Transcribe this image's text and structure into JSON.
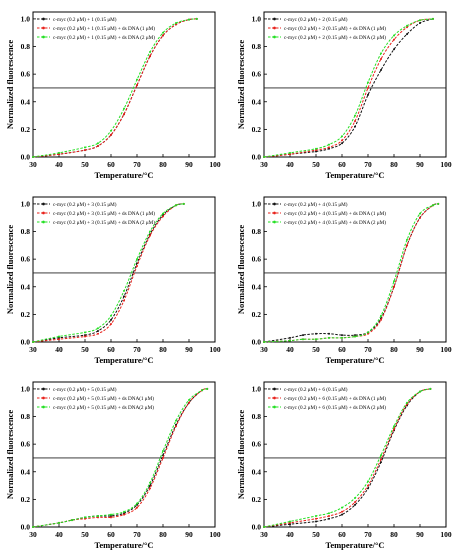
{
  "colors": {
    "series": [
      "#111111",
      "#e8201a",
      "#22e022"
    ],
    "threshold": "#222222"
  },
  "chart_data": [
    {
      "type": "line",
      "xlabel": "Temperature/°C",
      "ylabel": "Normalized fluorescence",
      "xlim": [
        30,
        100
      ],
      "ylim": [
        0,
        1.05
      ],
      "xticks": [
        "30",
        "40",
        "50",
        "60",
        "70",
        "80",
        "90",
        "100"
      ],
      "yticks": [
        "0.0",
        "0.2",
        "0.4",
        "0.6",
        "0.8",
        "1.0"
      ],
      "reference_line": {
        "y": 0.5
      },
      "legend_position": "top-left",
      "series": [
        {
          "name": "c-myc (0.2 μM) + 1 (0.15 μM)",
          "x": [
            30,
            40,
            50,
            55,
            60,
            65,
            70,
            75,
            80,
            85,
            90,
            93
          ],
          "y": [
            0.0,
            0.02,
            0.05,
            0.08,
            0.16,
            0.31,
            0.52,
            0.73,
            0.88,
            0.96,
            0.995,
            1.0
          ]
        },
        {
          "name": "c-myc (0.2 μM) + 1 (0.15 μM) + ds DNA (1 μM)",
          "x": [
            30,
            40,
            50,
            55,
            60,
            65,
            70,
            75,
            80,
            85,
            90,
            93
          ],
          "y": [
            0.0,
            0.02,
            0.05,
            0.08,
            0.16,
            0.31,
            0.52,
            0.73,
            0.88,
            0.96,
            0.995,
            1.0
          ]
        },
        {
          "name": "c-myc (0.2 μM) + 1 (0.15 μM) + ds DNA (2 μM)",
          "x": [
            30,
            40,
            50,
            55,
            60,
            65,
            70,
            75,
            80,
            85,
            90,
            93
          ],
          "y": [
            0.0,
            0.03,
            0.07,
            0.1,
            0.19,
            0.35,
            0.56,
            0.76,
            0.9,
            0.97,
            0.995,
            1.0
          ]
        }
      ]
    },
    {
      "type": "line",
      "xlabel": "Temperature/°C",
      "ylabel": "Normalized fluorescence",
      "xlim": [
        30,
        100
      ],
      "ylim": [
        0,
        1.05
      ],
      "xticks": [
        "30",
        "40",
        "50",
        "60",
        "70",
        "80",
        "90",
        "100"
      ],
      "yticks": [
        "0.0",
        "0.2",
        "0.4",
        "0.6",
        "0.8",
        "1.0"
      ],
      "reference_line": {
        "y": 0.5
      },
      "legend_position": "top-left",
      "series": [
        {
          "name": "c-myc (0.2 μM) + 2 (0.15 μM)",
          "x": [
            30,
            40,
            50,
            55,
            60,
            65,
            70,
            75,
            80,
            85,
            90,
            95
          ],
          "y": [
            0.0,
            0.02,
            0.04,
            0.06,
            0.1,
            0.22,
            0.45,
            0.63,
            0.78,
            0.89,
            0.97,
            1.0
          ]
        },
        {
          "name": "c-myc (0.2 μM) + 2 (0.15 μM) + ds DNA (1 μM)",
          "x": [
            30,
            40,
            50,
            55,
            60,
            65,
            70,
            75,
            80,
            85,
            90,
            95
          ],
          "y": [
            0.0,
            0.02,
            0.05,
            0.07,
            0.12,
            0.26,
            0.5,
            0.71,
            0.85,
            0.94,
            0.99,
            1.0
          ]
        },
        {
          "name": "c-myc (0.2 μM) + 2 (0.15 μM) + ds DNA (2 μM)",
          "x": [
            30,
            40,
            50,
            55,
            60,
            65,
            70,
            75,
            80,
            85,
            90,
            95
          ],
          "y": [
            0.0,
            0.03,
            0.06,
            0.09,
            0.15,
            0.3,
            0.54,
            0.75,
            0.88,
            0.95,
            0.99,
            1.0
          ]
        }
      ]
    },
    {
      "type": "line",
      "xlabel": "Temperature/°C",
      "ylabel": "Normalized fluorescence",
      "xlim": [
        30,
        100
      ],
      "ylim": [
        0,
        1.05
      ],
      "xticks": [
        "30",
        "40",
        "50",
        "60",
        "70",
        "80",
        "90",
        "100"
      ],
      "yticks": [
        "0.0",
        "0.2",
        "0.4",
        "0.6",
        "0.8",
        "1.0"
      ],
      "reference_line": {
        "y": 0.5
      },
      "legend_position": "top-left",
      "series": [
        {
          "name": "c-myc (0.2 μM) + 3 (0.15 μM)",
          "x": [
            30,
            40,
            50,
            55,
            60,
            65,
            70,
            75,
            80,
            85,
            88
          ],
          "y": [
            0.0,
            0.03,
            0.05,
            0.08,
            0.16,
            0.33,
            0.57,
            0.78,
            0.92,
            0.99,
            1.0
          ]
        },
        {
          "name": "c-myc (0.2 μM) + 3 (0.15 μM) + ds DNA (1 μM)",
          "x": [
            30,
            40,
            50,
            55,
            60,
            65,
            70,
            75,
            80,
            85,
            88
          ],
          "y": [
            0.0,
            0.02,
            0.04,
            0.06,
            0.13,
            0.3,
            0.55,
            0.77,
            0.91,
            0.99,
            1.0
          ]
        },
        {
          "name": "c-myc (0.2 μM) + 3 (0.15 μM) + ds DNA (2 μM)",
          "x": [
            30,
            40,
            50,
            55,
            60,
            65,
            70,
            75,
            80,
            85,
            88
          ],
          "y": [
            0.0,
            0.04,
            0.07,
            0.1,
            0.19,
            0.37,
            0.6,
            0.8,
            0.93,
            0.99,
            1.0
          ]
        }
      ]
    },
    {
      "type": "line",
      "xlabel": "Temperature/°C",
      "ylabel": "Normalized fluorescence",
      "xlim": [
        30,
        100
      ],
      "ylim": [
        0,
        1.05
      ],
      "xticks": [
        "30",
        "40",
        "50",
        "60",
        "70",
        "80",
        "90",
        "100"
      ],
      "yticks": [
        "0.0",
        "0.2",
        "0.4",
        "0.6",
        "0.8",
        "1.0"
      ],
      "reference_line": {
        "y": 0.5
      },
      "legend_position": "top-left",
      "series": [
        {
          "name": "c-myc (0.2 μM) + 4 (0.15 μM)",
          "x": [
            30,
            40,
            45,
            50,
            55,
            60,
            65,
            70,
            75,
            80,
            85,
            90,
            95,
            97
          ],
          "y": [
            0.0,
            0.03,
            0.05,
            0.06,
            0.06,
            0.05,
            0.05,
            0.07,
            0.17,
            0.4,
            0.7,
            0.9,
            0.99,
            1.0
          ]
        },
        {
          "name": "c-myc (0.2 μM) + 4 (0.15 μM) + ds DNA (1 μM)",
          "x": [
            30,
            40,
            45,
            50,
            55,
            60,
            65,
            70,
            75,
            80,
            85,
            90,
            95,
            97
          ],
          "y": [
            0.0,
            0.01,
            0.02,
            0.02,
            0.03,
            0.03,
            0.04,
            0.06,
            0.16,
            0.4,
            0.7,
            0.9,
            0.99,
            1.0
          ]
        },
        {
          "name": "c-myc (0.2 μM) + 4 (0.15 μM) + ds DNA (2 μM)",
          "x": [
            30,
            40,
            45,
            50,
            55,
            60,
            65,
            70,
            75,
            80,
            85,
            90,
            95,
            97
          ],
          "y": [
            0.0,
            0.01,
            0.02,
            0.02,
            0.03,
            0.03,
            0.04,
            0.07,
            0.19,
            0.44,
            0.74,
            0.93,
            0.99,
            1.0
          ]
        }
      ]
    },
    {
      "type": "line",
      "xlabel": "Temperature/°C",
      "ylabel": "Normalized fluorescence",
      "xlim": [
        30,
        100
      ],
      "ylim": [
        0,
        1.05
      ],
      "xticks": [
        "30",
        "40",
        "50",
        "60",
        "70",
        "80",
        "90",
        "100"
      ],
      "yticks": [
        "0.0",
        "0.2",
        "0.4",
        "0.6",
        "0.8",
        "1.0"
      ],
      "reference_line": {
        "y": 0.5
      },
      "legend_position": "top-left",
      "series": [
        {
          "name": "c-myc (0.2 μM) + 5 (0.15 μM)",
          "x": [
            30,
            40,
            45,
            50,
            55,
            60,
            65,
            70,
            75,
            80,
            85,
            90,
            95,
            97
          ],
          "y": [
            0.0,
            0.03,
            0.05,
            0.07,
            0.08,
            0.08,
            0.1,
            0.16,
            0.3,
            0.52,
            0.74,
            0.9,
            0.99,
            1.0
          ]
        },
        {
          "name": "c-myc (0.2 μM) + 5 (0.15 μM) + ds DNA(1 μM)",
          "x": [
            30,
            40,
            45,
            50,
            55,
            60,
            65,
            70,
            75,
            80,
            85,
            90,
            95,
            97
          ],
          "y": [
            0.0,
            0.03,
            0.05,
            0.06,
            0.07,
            0.07,
            0.09,
            0.14,
            0.28,
            0.5,
            0.73,
            0.9,
            0.99,
            1.0
          ]
        },
        {
          "name": "c-myc (0.2 μM) + 5 (0.15 μM) + ds DNA(2 μM)",
          "x": [
            30,
            40,
            45,
            50,
            55,
            60,
            65,
            70,
            75,
            80,
            85,
            90,
            95,
            97
          ],
          "y": [
            0.0,
            0.03,
            0.05,
            0.07,
            0.08,
            0.09,
            0.11,
            0.17,
            0.32,
            0.55,
            0.77,
            0.92,
            0.99,
            1.0
          ]
        }
      ]
    },
    {
      "type": "line",
      "xlabel": "Temperature/°C",
      "ylabel": "Normalized fluorescence",
      "xlim": [
        30,
        100
      ],
      "ylim": [
        0,
        1.05
      ],
      "xticks": [
        "30",
        "40",
        "50",
        "60",
        "70",
        "80",
        "90",
        "100"
      ],
      "yticks": [
        "0.0",
        "0.2",
        "0.4",
        "0.6",
        "0.8",
        "1.0"
      ],
      "reference_line": {
        "y": 0.5
      },
      "legend_position": "top-left",
      "series": [
        {
          "name": "c-myc (0.2 μM) + 6 (0.15 μM)",
          "x": [
            30,
            40,
            50,
            55,
            60,
            65,
            70,
            75,
            80,
            85,
            90,
            94
          ],
          "y": [
            0.0,
            0.02,
            0.04,
            0.06,
            0.09,
            0.16,
            0.28,
            0.47,
            0.7,
            0.88,
            0.98,
            1.0
          ]
        },
        {
          "name": "c-myc (0.2 μM) + 6 (0.15 μM) + ds DNA (1 μM)",
          "x": [
            30,
            40,
            50,
            55,
            60,
            65,
            70,
            75,
            80,
            85,
            90,
            94
          ],
          "y": [
            0.0,
            0.03,
            0.06,
            0.08,
            0.11,
            0.18,
            0.3,
            0.49,
            0.71,
            0.89,
            0.98,
            1.0
          ]
        },
        {
          "name": "c-myc (0.2 μM) + 6 (0.15 μM) + ds DNA (2 μM)",
          "x": [
            30,
            40,
            50,
            55,
            60,
            65,
            70,
            75,
            80,
            85,
            90,
            94
          ],
          "y": [
            0.0,
            0.04,
            0.08,
            0.1,
            0.14,
            0.21,
            0.33,
            0.52,
            0.73,
            0.9,
            0.98,
            1.0
          ]
        }
      ]
    }
  ]
}
